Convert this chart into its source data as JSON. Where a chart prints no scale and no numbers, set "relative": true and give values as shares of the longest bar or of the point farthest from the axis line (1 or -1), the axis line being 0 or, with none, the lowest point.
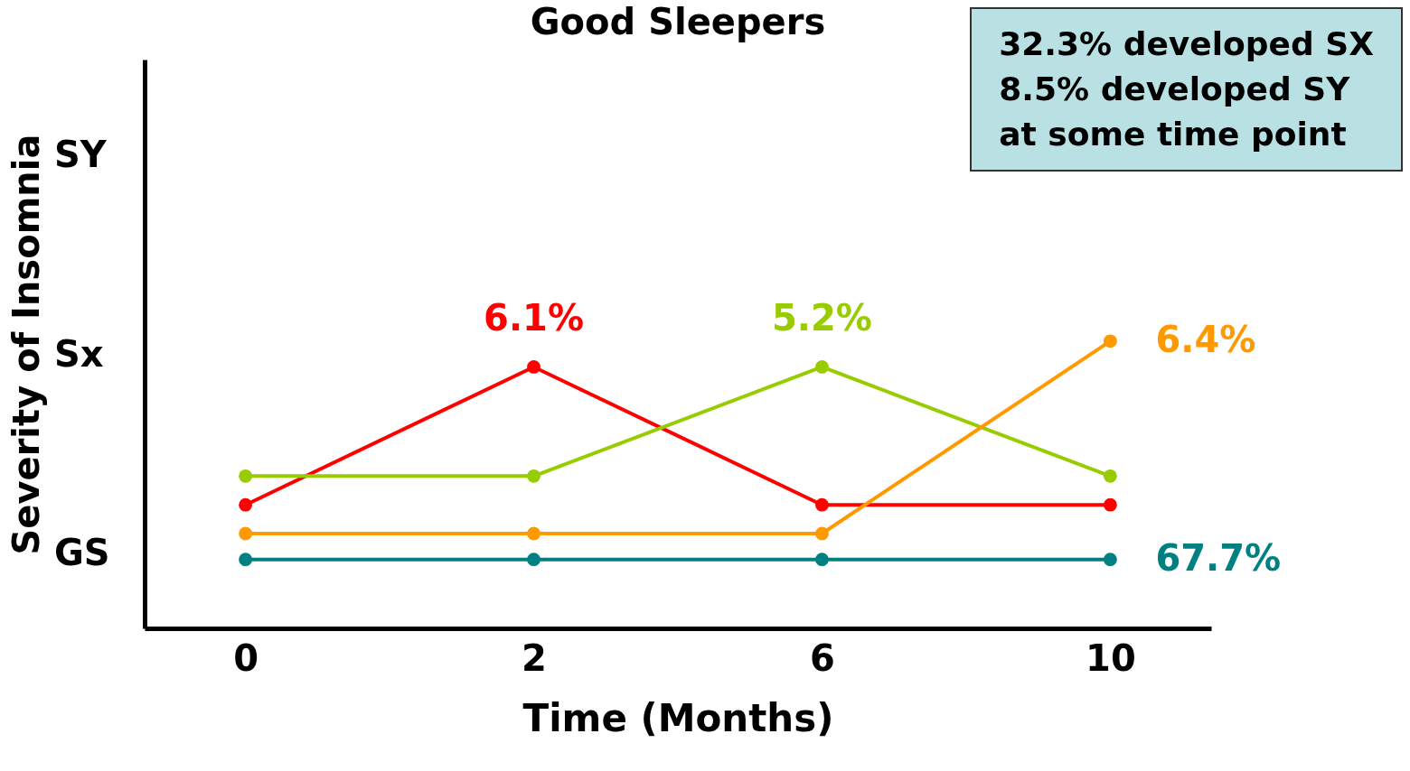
{
  "chart_data": {
    "type": "line",
    "title": "Good Sleepers",
    "xlabel": "Time (Months)",
    "ylabel": "Severity of Insomnia",
    "categories": [
      "0",
      "2",
      "6",
      "10"
    ],
    "relative": true,
    "series": [
      {
        "color": "#ff0000",
        "values": [
          0.43,
          0.91,
          0.43,
          0.43
        ]
      },
      {
        "color": "#99cc00",
        "values": [
          0.53,
          0.53,
          0.91,
          0.53
        ]
      },
      {
        "color": "#ff9900",
        "values": [
          0.33,
          0.33,
          0.33,
          1
        ]
      },
      {
        "color": "#008080",
        "values": [
          0.24,
          0.24,
          0.24,
          0.24
        ]
      }
    ],
    "marker": "circle",
    "grid": false,
    "legend": false,
    "annotations": [
      {
        "text": "6.1%",
        "x": "2",
        "y": 0.91
      },
      {
        "text": "5.2%",
        "x": "6",
        "y": 0.91
      },
      {
        "text": "6.4%",
        "x": "10",
        "y": 1
      },
      {
        "text": "67.7%",
        "x": "10",
        "y": 0.24
      },
      "GS",
      "Sx",
      "SY",
      "32.3% developed SX\n8.5% developed SY\nat some time point"
    ]
  }
}
